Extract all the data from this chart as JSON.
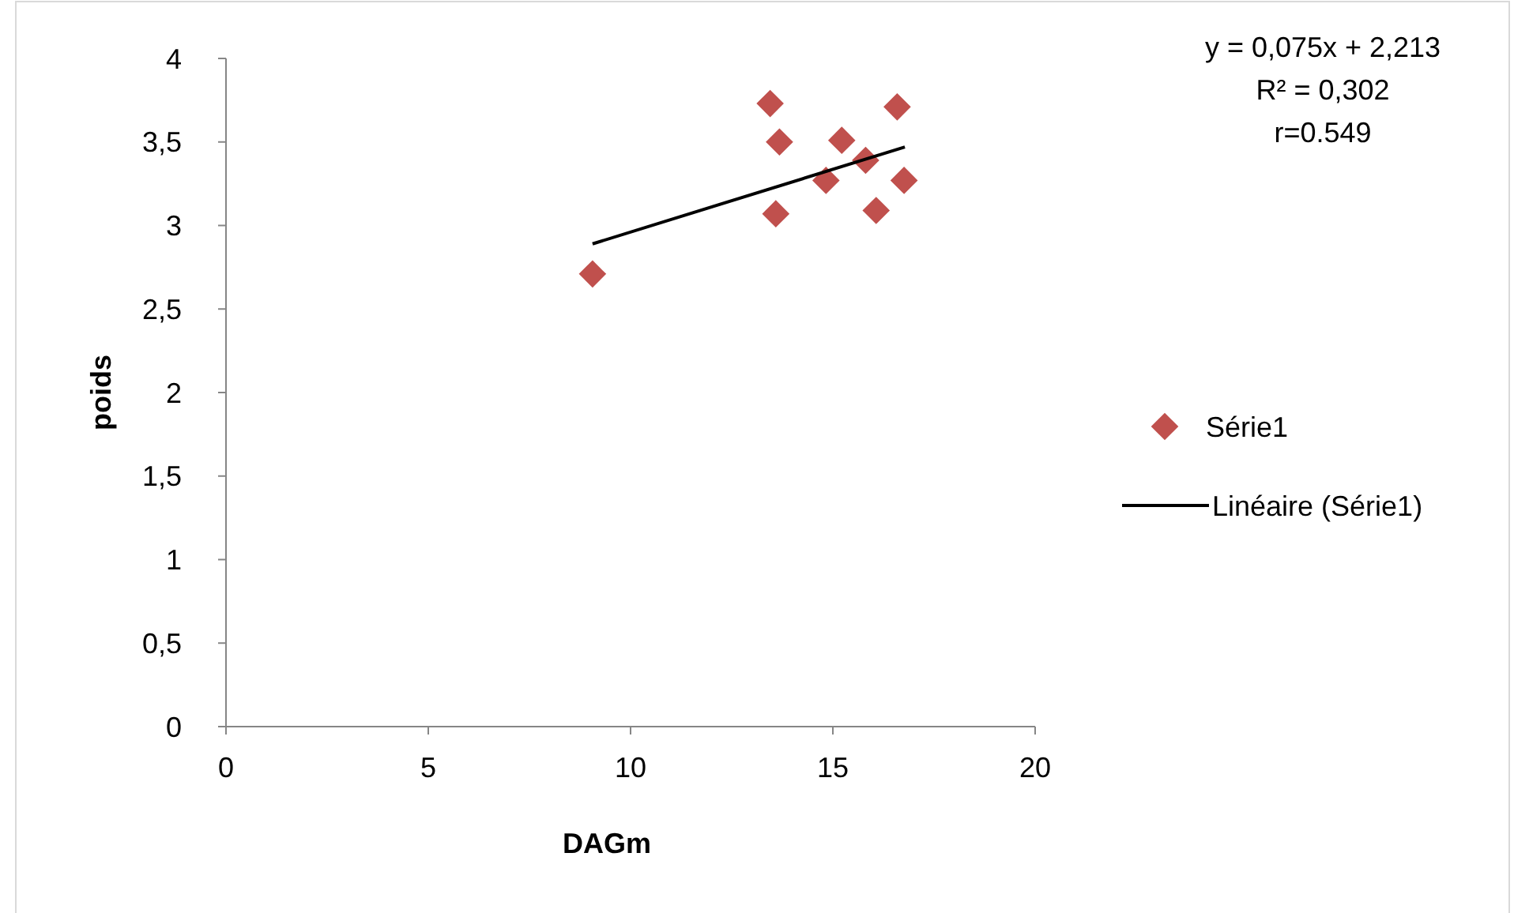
{
  "chart_data": {
    "type": "scatter",
    "xlabel": "DAGm",
    "ylabel": "poids",
    "annotations": [
      "y = 0,075x + 2,213",
      "R² = 0,302",
      "r=0.549"
    ],
    "xlim": [
      0,
      20
    ],
    "xticks": [
      0,
      5,
      10,
      15,
      20
    ],
    "ylim": [
      0,
      4
    ],
    "yticks": [
      0,
      {
        "value": 0.5,
        "label": "0,5"
      },
      1,
      {
        "value": 1.5,
        "label": "1,5"
      },
      2,
      {
        "value": 2.5,
        "label": "2,5"
      },
      3,
      {
        "value": 3.5,
        "label": "3,5"
      },
      4
    ],
    "grid": false,
    "legend": "right",
    "series": [
      {
        "name": "Série1",
        "marker": "diamond",
        "color": "#c0504d",
        "x": [
          9.06,
          13.45,
          13.68,
          13.59,
          14.83,
          15.22,
          15.81,
          16.07,
          16.59,
          16.76
        ],
        "values": [
          2.71,
          3.73,
          3.5,
          3.07,
          3.27,
          3.51,
          3.39,
          3.09,
          3.71,
          3.27
        ]
      },
      {
        "name": "Linéaire (Série1)",
        "type": "line",
        "color": "#000000",
        "line_style": "solid",
        "x": [
          9.06,
          16.78
        ],
        "values": [
          2.89,
          3.47
        ]
      }
    ]
  }
}
